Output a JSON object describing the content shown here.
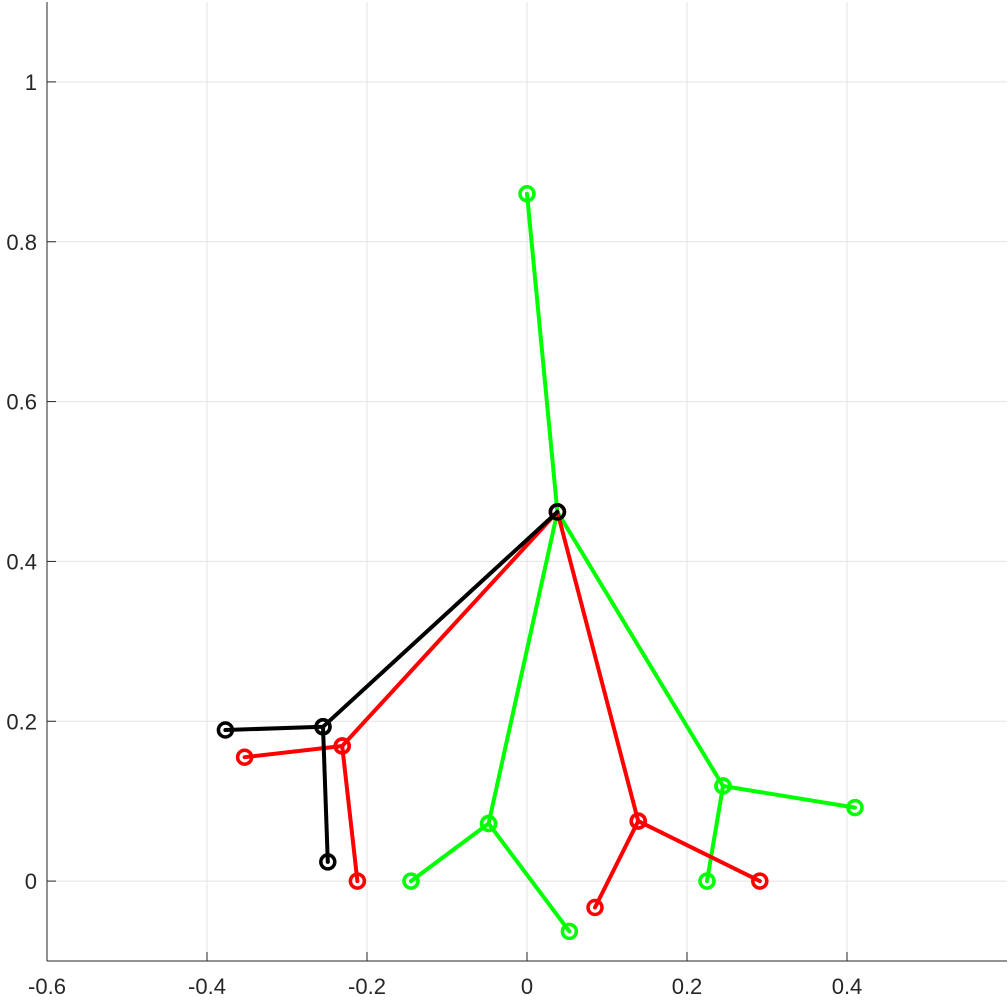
{
  "chart_data": {
    "type": "line",
    "title": "",
    "xlabel": "",
    "ylabel": "",
    "xlim": [
      -0.6,
      0.6
    ],
    "ylim": [
      -0.1,
      1.1
    ],
    "grid": true,
    "box": false,
    "xticks": [
      -0.6,
      -0.4,
      -0.2,
      0,
      0.2,
      0.4
    ],
    "xtick_labels": [
      "-0.6",
      "-0.4",
      "-0.2",
      "0",
      "0.2",
      "0.4"
    ],
    "yticks": [
      0,
      0.2,
      0.4,
      0.6,
      0.8,
      1
    ],
    "ytick_labels": [
      "0",
      "0.2",
      "0.4",
      "0.6",
      "0.8",
      "1"
    ],
    "marker": "circle",
    "series": [
      {
        "color": "#00ff00",
        "segments": [
          [
            [
              0.0,
              0.86
            ],
            [
              0.038,
              0.462
            ]
          ],
          [
            [
              0.038,
              0.462
            ],
            [
              -0.048,
              0.072
            ],
            [
              -0.145,
              0.0
            ]
          ],
          [
            [
              -0.048,
              0.072
            ],
            [
              0.053,
              -0.063
            ]
          ],
          [
            [
              0.038,
              0.462
            ],
            [
              0.245,
              0.119
            ],
            [
              0.41,
              0.092
            ]
          ],
          [
            [
              0.245,
              0.119
            ],
            [
              0.225,
              0.0
            ]
          ]
        ]
      },
      {
        "color": "#ff0000",
        "segments": [
          [
            [
              0.038,
              0.462
            ],
            [
              -0.231,
              0.169
            ],
            [
              -0.353,
              0.155
            ]
          ],
          [
            [
              -0.231,
              0.169
            ],
            [
              -0.212,
              0.0
            ]
          ],
          [
            [
              0.038,
              0.462
            ],
            [
              0.139,
              0.075
            ],
            [
              0.291,
              0.0
            ]
          ],
          [
            [
              0.139,
              0.075
            ],
            [
              0.085,
              -0.033
            ]
          ]
        ]
      },
      {
        "color": "#000000",
        "segments": [
          [
            [
              0.038,
              0.462
            ],
            [
              -0.255,
              0.193
            ],
            [
              -0.377,
              0.189
            ]
          ],
          [
            [
              -0.255,
              0.193
            ],
            [
              -0.249,
              0.024
            ]
          ]
        ]
      }
    ]
  }
}
